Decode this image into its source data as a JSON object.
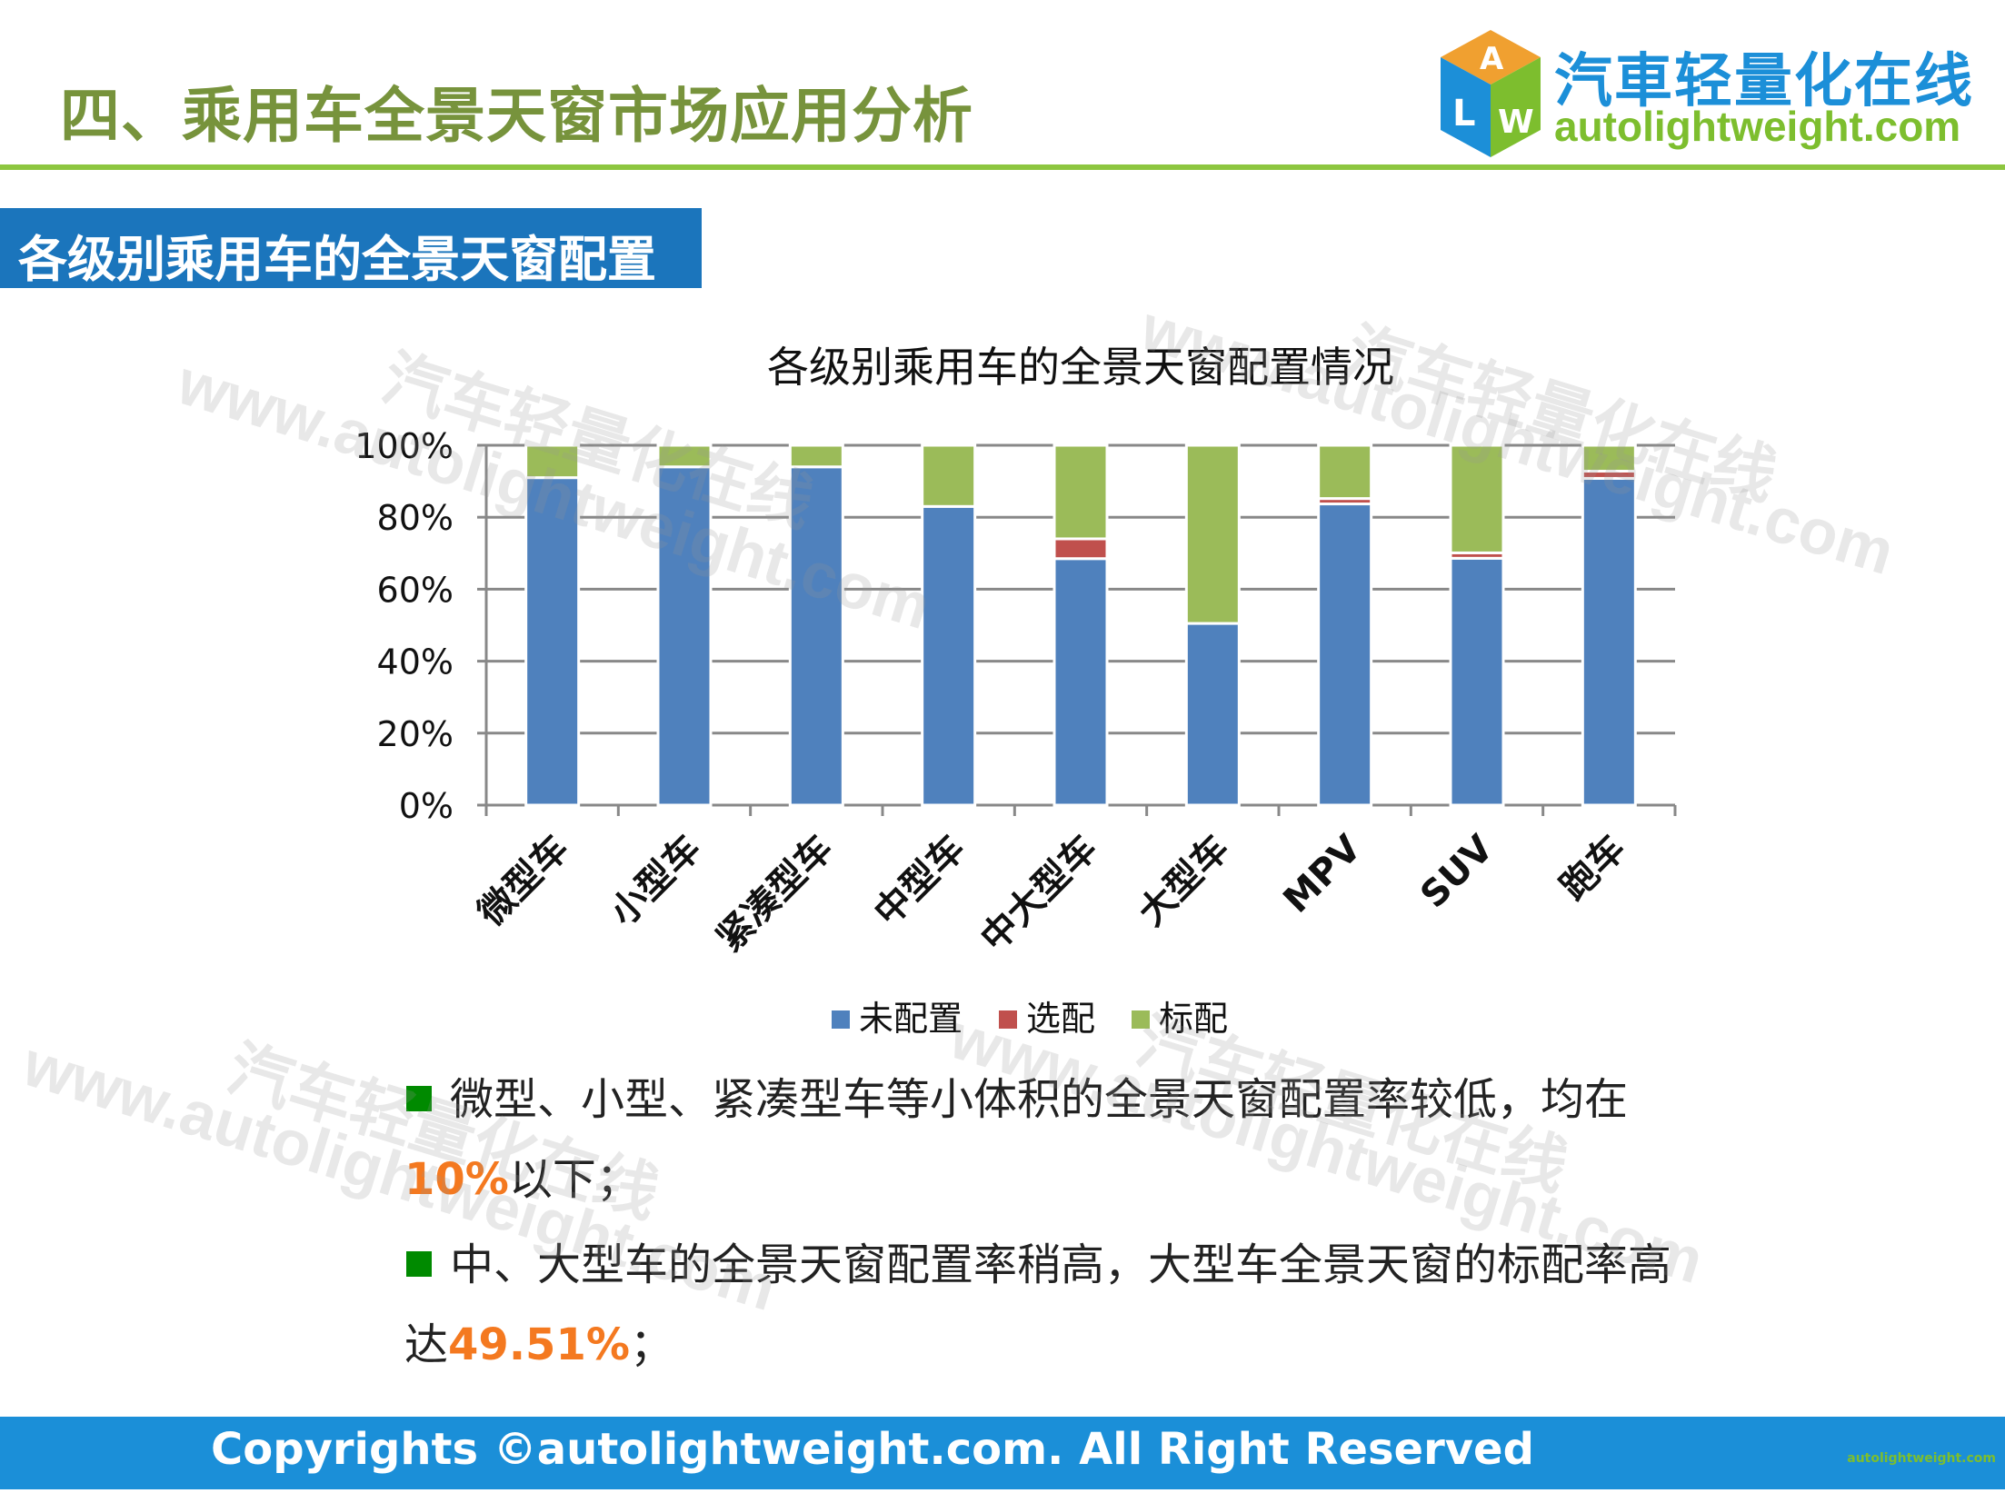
{
  "header": {
    "title": "四、乘用车全景天窗市场应用分析",
    "logo_cn": "汽車轻量化在线",
    "logo_en": "autolightweight.com",
    "logo_letters": "ALW"
  },
  "section": {
    "title": "各级别乘用车的全景天窗配置"
  },
  "watermark": {
    "cn": "汽车轻量化在线",
    "en": "www.autolightweight.com"
  },
  "colors": {
    "accent_green": "#8DC63F",
    "section_blue": "#1B75BC",
    "highlight": "#F47920"
  },
  "chart_data": {
    "type": "bar",
    "stacked": true,
    "percent_stacked": true,
    "title": "各级别乘用车的全景天窗配置情况",
    "categories": [
      "微型车",
      "小型车",
      "紧凑型车",
      "中型车",
      "中大型车",
      "大型车",
      "MPV",
      "SUV",
      "跑车"
    ],
    "series": [
      {
        "name": "未配置",
        "color": "#4F81BD",
        "values": [
          91,
          94,
          94,
          83,
          68.5,
          50.49,
          83.7,
          68.6,
          90.8
        ]
      },
      {
        "name": "选配",
        "color": "#C0504D",
        "values": [
          0,
          0,
          0,
          0,
          5.5,
          0,
          1.5,
          1.5,
          2
        ]
      },
      {
        "name": "标配",
        "color": "#9BBB59",
        "values": [
          9,
          6,
          6,
          17,
          26,
          49.51,
          14.8,
          29.9,
          7.2
        ]
      }
    ],
    "yticks": [
      "0%",
      "20%",
      "40%",
      "60%",
      "80%",
      "100%"
    ],
    "ylim": [
      0,
      100
    ],
    "grid": true,
    "legend": "bottom"
  },
  "bullets": [
    {
      "pre": "微型、小型、紧凑型车等小体积的全景天窗配置率较低，均在",
      "hl": "10%",
      "post": "以下；"
    },
    {
      "pre": "中、大型车的全景天窗配置率稍高，大型车全景天窗的标配率高",
      "pre2": "达",
      "hl": "49.51%",
      "post": "；"
    }
  ],
  "footer": {
    "text": "Copyrights ©autolightweight.com. All Right Reserved",
    "mini_logo": "autolightweight.com"
  }
}
